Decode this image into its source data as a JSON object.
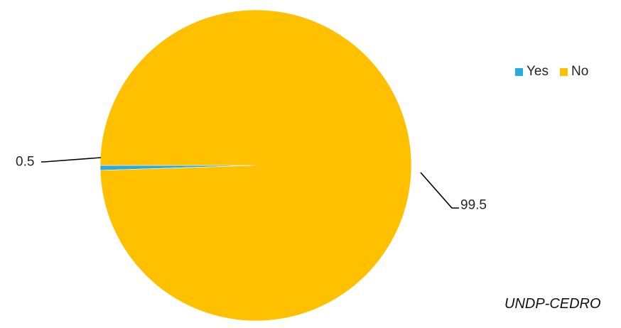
{
  "chart_data": {
    "type": "pie",
    "title": "",
    "categories": [
      "Yes",
      "No"
    ],
    "values": [
      0.5,
      99.5
    ],
    "data_labels": [
      "0.5",
      "99.5"
    ],
    "colors": [
      "#29ABE2",
      "#FFC000"
    ],
    "legend": {
      "placement": "top-right",
      "entries": [
        "Yes",
        "No"
      ]
    }
  },
  "source_note": "UNDP-CEDRO"
}
